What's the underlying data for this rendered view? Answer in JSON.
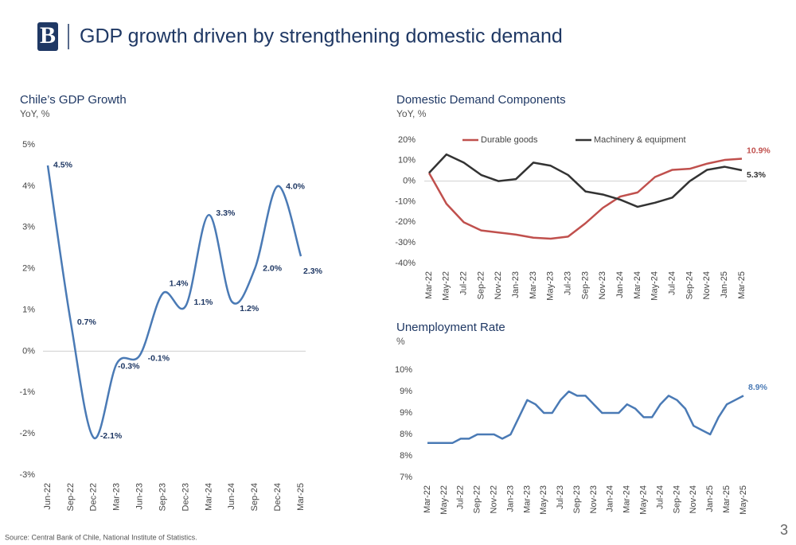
{
  "header": {
    "title": "GDP growth driven by strengthening domestic demand"
  },
  "footer": {
    "source": "Source: Central Bank of Chile, National Institute of Statistics.",
    "page": "3"
  },
  "chart_data": [
    {
      "type": "line",
      "title": "Chile’s GDP Growth",
      "subtitle": "YoY, %",
      "categories": [
        "Jun-22",
        "Sep-22",
        "Dec-22",
        "Mar-23",
        "Jun-23",
        "Sep-23",
        "Dec-23",
        "Mar-24",
        "Jun-24",
        "Sep-24",
        "Dec-24",
        "Mar-25"
      ],
      "series": [
        {
          "name": "GDP",
          "color": "#4a7ab5",
          "values": [
            4.5,
            0.7,
            -2.1,
            -0.3,
            -0.1,
            1.4,
            1.1,
            3.3,
            1.2,
            2.0,
            4.0,
            2.3
          ],
          "value_labels": [
            "4.5%",
            "0.7%",
            "-2.1%",
            "-0.3%",
            "-0.1%",
            "1.4%",
            "1.1%",
            "3.3%",
            "1.2%",
            "2.0%",
            "4.0%",
            "2.3%"
          ]
        }
      ],
      "ylim": [
        -3,
        5
      ],
      "yticks": [
        {
          "value": -3,
          "label": "-3%"
        },
        {
          "value": -2,
          "label": "-2%"
        },
        {
          "value": -1,
          "label": "-1%"
        },
        {
          "value": 0,
          "label": "0%"
        },
        {
          "value": 1,
          "label": "1%"
        },
        {
          "value": 2,
          "label": "2%"
        },
        {
          "value": 3,
          "label": "3%"
        },
        {
          "value": 4,
          "label": "4%"
        },
        {
          "value": 5,
          "label": "5%"
        }
      ],
      "grid": false,
      "smooth": true,
      "label_color": "#1f3864"
    },
    {
      "type": "line",
      "title": "Domestic Demand Components",
      "subtitle": "YoY, %",
      "categories": [
        "Mar-22",
        "May-22",
        "Jul-22",
        "Sep-22",
        "Nov-22",
        "Jan-23",
        "Mar-23",
        "May-23",
        "Jul-23",
        "Sep-23",
        "Nov-23",
        "Jan-24",
        "Mar-24",
        "May-24",
        "Jul-24",
        "Sep-24",
        "Nov-24",
        "Jan-25",
        "Mar-25"
      ],
      "series": [
        {
          "name": "Durable goods",
          "color": "#c0504d",
          "values": [
            4,
            -11,
            -20,
            -24,
            -25,
            -26,
            -27.5,
            -28,
            -27,
            -20.5,
            -13,
            -7.5,
            -5.5,
            2,
            5.5,
            6,
            8.5,
            10.3,
            10.9
          ],
          "value_labels": [
            null,
            null,
            null,
            null,
            null,
            null,
            null,
            null,
            null,
            null,
            null,
            null,
            null,
            null,
            null,
            null,
            null,
            null,
            "10.9%"
          ]
        },
        {
          "name": "Machinery & equipment",
          "color": "#333333",
          "values": [
            4,
            13,
            9,
            3,
            0,
            1,
            9,
            7.5,
            3,
            -5,
            -6.5,
            -9,
            -12.5,
            -10.5,
            -8,
            0,
            5.5,
            7,
            5.3
          ],
          "value_labels": [
            null,
            null,
            null,
            null,
            null,
            null,
            null,
            null,
            null,
            null,
            null,
            null,
            null,
            null,
            null,
            null,
            null,
            null,
            "5.3%"
          ]
        }
      ],
      "ylim": [
        -40,
        20
      ],
      "yticks": [
        {
          "value": -40,
          "label": "-40%"
        },
        {
          "value": -30,
          "label": "-30%"
        },
        {
          "value": -20,
          "label": "-20%"
        },
        {
          "value": -10,
          "label": "-10%"
        },
        {
          "value": 0,
          "label": "0%"
        },
        {
          "value": 10,
          "label": "10%"
        },
        {
          "value": 20,
          "label": "20%"
        }
      ],
      "grid": false,
      "smooth": false,
      "legend": "top"
    },
    {
      "type": "line",
      "title": "Unemployment Rate",
      "subtitle": "%",
      "categories": [
        "Mar-22",
        null,
        "May-22",
        null,
        "Jul-22",
        null,
        "Sep-22",
        null,
        "Nov-22",
        null,
        "Jan-23",
        null,
        "Mar-23",
        null,
        "May-23",
        null,
        "Jul-23",
        null,
        "Sep-23",
        null,
        "Nov-23",
        null,
        "Jan-24",
        null,
        "Mar-24",
        null,
        "May-24",
        null,
        "Jul-24",
        null,
        "Sep-24",
        null,
        "Nov-24",
        null,
        "Jan-25",
        null,
        "Mar-25",
        null,
        "May-25"
      ],
      "series": [
        {
          "name": "Unemployment",
          "color": "#4a7ab5",
          "values": [
            7.8,
            7.8,
            7.8,
            7.8,
            7.9,
            7.9,
            8.0,
            8.0,
            8.0,
            7.9,
            8.0,
            8.4,
            8.8,
            8.7,
            8.5,
            8.5,
            8.8,
            9.0,
            8.9,
            8.9,
            8.7,
            8.5,
            8.5,
            8.5,
            8.7,
            8.6,
            8.4,
            8.4,
            8.7,
            8.9,
            8.8,
            8.6,
            8.2,
            8.1,
            8.0,
            8.4,
            8.7,
            8.8,
            8.9
          ],
          "value_labels": [
            null,
            null,
            null,
            null,
            null,
            null,
            null,
            null,
            null,
            null,
            null,
            null,
            null,
            null,
            null,
            null,
            null,
            null,
            null,
            null,
            null,
            null,
            null,
            null,
            null,
            null,
            null,
            null,
            null,
            null,
            null,
            null,
            null,
            null,
            null,
            null,
            null,
            null,
            "8.9%"
          ]
        }
      ],
      "ylim": [
        7,
        9.5
      ],
      "yticks": [
        {
          "value": 7,
          "label": "7%"
        },
        {
          "value": 7.5,
          "label": "8%"
        },
        {
          "value": 8,
          "label": "8%"
        },
        {
          "value": 8.5,
          "label": "9%"
        },
        {
          "value": 9,
          "label": "9%"
        },
        {
          "value": 9.5,
          "label": "10%"
        }
      ],
      "grid": false,
      "smooth": false
    }
  ]
}
